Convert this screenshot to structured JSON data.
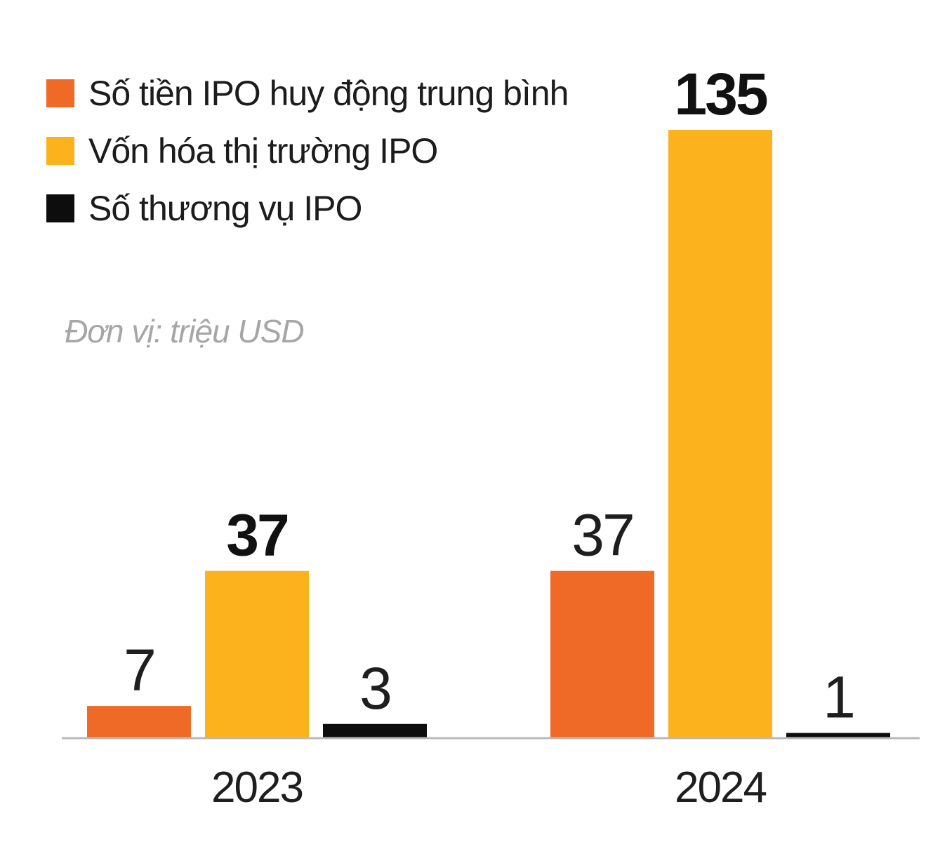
{
  "legend": {
    "items": [
      {
        "label": "Số tiền IPO huy động trung bình",
        "color": "#ee6a26"
      },
      {
        "label": "Vốn hóa thị trường IPO",
        "color": "#fbb21d"
      },
      {
        "label": "Số thương vụ IPO",
        "color": "#0d0d0d"
      }
    ]
  },
  "unit_note": "Đơn vị: triệu USD",
  "chart_data": {
    "type": "bar",
    "categories": [
      "2023",
      "2024"
    ],
    "series": [
      {
        "name": "Số tiền IPO huy động trung bình",
        "values": [
          7,
          37
        ],
        "color": "#ee6a26"
      },
      {
        "name": "Vốn hóa thị trường IPO",
        "values": [
          37,
          135
        ],
        "color": "#fbb21d"
      },
      {
        "name": "Số thương vụ IPO",
        "values": [
          3,
          1
        ],
        "color": "#0d0d0d"
      }
    ],
    "data_labels": [
      [
        "7",
        "37",
        "3"
      ],
      [
        "37",
        "135",
        "1"
      ]
    ],
    "bold_labels": [
      [
        false,
        true,
        false
      ],
      [
        false,
        true,
        false
      ]
    ],
    "ylim": [
      0,
      135
    ],
    "grid": false,
    "legend_position": "top-left"
  }
}
